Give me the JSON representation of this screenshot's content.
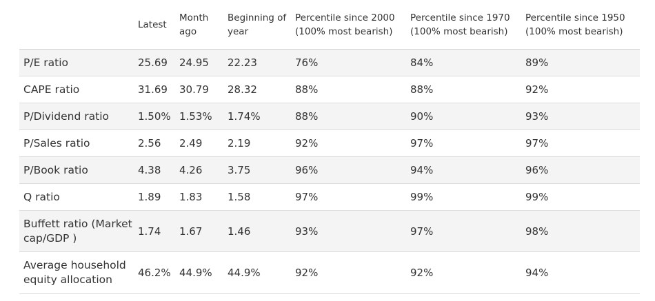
{
  "table": {
    "headers": [
      "",
      "Latest",
      "Month\nago",
      "Beginning of\nyear",
      "Percentile since 2000\n(100% most bearish)",
      "Percentile since 1970\n(100% most bearish)",
      "Percentile since 1950\n(100% most bearish)"
    ],
    "header_cells": {
      "latest": "Latest",
      "month_ago_1": "Month",
      "month_ago_2": "ago",
      "boy_1": "Beginning of",
      "boy_2": "year",
      "p2000_1": "Percentile since 2000",
      "p2000_2": "(100% most bearish)",
      "p1970_1": "Percentile since 1970",
      "p1970_2": "(100% most bearish)",
      "p1950_1": "Percentile since 1950",
      "p1950_2": "(100% most bearish)"
    },
    "rows": [
      {
        "metric": "P/E ratio",
        "latest": "25.69",
        "month_ago": "24.95",
        "beginning_of_year": "22.23",
        "pct_2000": "76%",
        "pct_1970": "84%",
        "pct_1950": "89%"
      },
      {
        "metric": "CAPE ratio",
        "latest": "31.69",
        "month_ago": "30.79",
        "beginning_of_year": "28.32",
        "pct_2000": "88%",
        "pct_1970": "88%",
        "pct_1950": "92%"
      },
      {
        "metric": "P/Dividend ratio",
        "latest": "1.50%",
        "month_ago": "1.53%",
        "beginning_of_year": "1.74%",
        "pct_2000": "88%",
        "pct_1970": "90%",
        "pct_1950": "93%"
      },
      {
        "metric": "P/Sales ratio",
        "latest": "2.56",
        "month_ago": "2.49",
        "beginning_of_year": "2.19",
        "pct_2000": "92%",
        "pct_1970": "97%",
        "pct_1950": "97%"
      },
      {
        "metric": "P/Book ratio",
        "latest": "4.38",
        "month_ago": "4.26",
        "beginning_of_year": "3.75",
        "pct_2000": "96%",
        "pct_1970": "94%",
        "pct_1950": "96%"
      },
      {
        "metric": "Q ratio",
        "latest": "1.89",
        "month_ago": "1.83",
        "beginning_of_year": "1.58",
        "pct_2000": "97%",
        "pct_1970": "99%",
        "pct_1950": "99%"
      },
      {
        "metric": "Buffett ratio (Market cap/GDP )",
        "latest": "1.74",
        "month_ago": "1.67",
        "beginning_of_year": "1.46",
        "pct_2000": "93%",
        "pct_1970": "97%",
        "pct_1950": "98%"
      },
      {
        "metric": "Average household equity allocation",
        "latest": "46.2%",
        "month_ago": "44.9%",
        "beginning_of_year": "44.9%",
        "pct_2000": "92%",
        "pct_1970": "92%",
        "pct_1950": "94%"
      }
    ]
  },
  "colors": {
    "text": "#333333",
    "row_shade": "#f4f4f4",
    "divider": "#dcdcdc"
  }
}
